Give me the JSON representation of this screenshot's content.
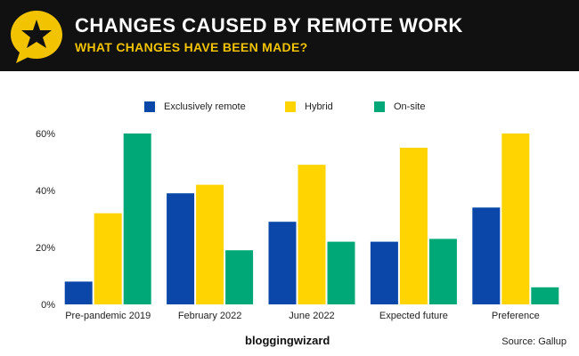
{
  "header": {
    "title": "CHANGES CAUSED BY REMOTE WORK",
    "subtitle": "WHAT CHANGES HAVE BEEN MADE?",
    "icon": "star-speech-bubble-icon",
    "accent_color": "#f2c300",
    "background_color": "#111111"
  },
  "footer": {
    "brand": "bloggingwizard",
    "source": "Source: Gallup"
  },
  "chart_data": {
    "type": "bar",
    "categories": [
      "Pre-pandemic 2019",
      "February 2022",
      "June 2022",
      "Expected future",
      "Preference"
    ],
    "series": [
      {
        "name": "Exclusively remote",
        "color": "#0a47a8",
        "values": [
          8,
          39,
          29,
          22,
          34
        ]
      },
      {
        "name": "Hybrid",
        "color": "#ffd400",
        "values": [
          32,
          42,
          49,
          55,
          60
        ]
      },
      {
        "name": "On-site",
        "color": "#00a878",
        "values": [
          60,
          19,
          22,
          23,
          6
        ]
      }
    ],
    "ylim": [
      0,
      60
    ],
    "yticks": [
      0,
      20,
      40,
      60
    ],
    "ytick_labels": [
      "0%",
      "20%",
      "40%",
      "60%"
    ],
    "xlabel": "",
    "ylabel": "",
    "legend_position": "top-center",
    "grid": false
  }
}
